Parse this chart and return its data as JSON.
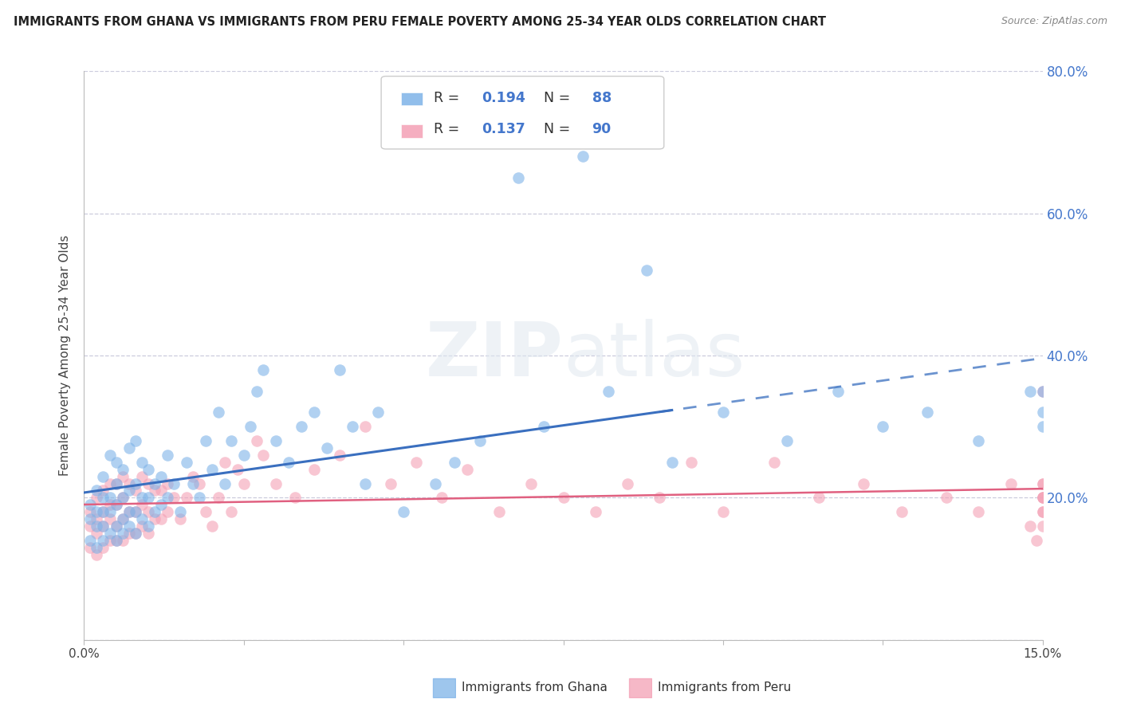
{
  "title": "IMMIGRANTS FROM GHANA VS IMMIGRANTS FROM PERU FEMALE POVERTY AMONG 25-34 YEAR OLDS CORRELATION CHART",
  "source": "Source: ZipAtlas.com",
  "ylabel": "Female Poverty Among 25-34 Year Olds",
  "xlim": [
    0.0,
    0.15
  ],
  "ylim": [
    0.0,
    0.8
  ],
  "ghana_R": 0.194,
  "ghana_N": 88,
  "peru_R": 0.137,
  "peru_N": 90,
  "ghana_color": "#7EB3E8",
  "peru_color": "#F4A0B5",
  "ghana_trend_color": "#3A6FBF",
  "peru_trend_color": "#E06080",
  "right_axis_color": "#4477CC",
  "background_color": "#FFFFFF",
  "grid_color": "#CCCCDD",
  "watermark_zip": "ZIP",
  "watermark_atlas": "atlas",
  "ghana_x": [
    0.001,
    0.001,
    0.001,
    0.002,
    0.002,
    0.002,
    0.002,
    0.003,
    0.003,
    0.003,
    0.003,
    0.003,
    0.004,
    0.004,
    0.004,
    0.004,
    0.005,
    0.005,
    0.005,
    0.005,
    0.005,
    0.006,
    0.006,
    0.006,
    0.006,
    0.007,
    0.007,
    0.007,
    0.007,
    0.008,
    0.008,
    0.008,
    0.008,
    0.009,
    0.009,
    0.009,
    0.01,
    0.01,
    0.01,
    0.011,
    0.011,
    0.012,
    0.012,
    0.013,
    0.013,
    0.014,
    0.015,
    0.016,
    0.017,
    0.018,
    0.019,
    0.02,
    0.021,
    0.022,
    0.023,
    0.025,
    0.026,
    0.027,
    0.028,
    0.03,
    0.032,
    0.034,
    0.036,
    0.038,
    0.04,
    0.042,
    0.044,
    0.046,
    0.05,
    0.055,
    0.058,
    0.062,
    0.068,
    0.072,
    0.078,
    0.082,
    0.088,
    0.092,
    0.1,
    0.11,
    0.118,
    0.125,
    0.132,
    0.14,
    0.148,
    0.15,
    0.15,
    0.15
  ],
  "ghana_y": [
    0.14,
    0.17,
    0.19,
    0.13,
    0.16,
    0.18,
    0.21,
    0.14,
    0.16,
    0.18,
    0.2,
    0.23,
    0.15,
    0.18,
    0.2,
    0.26,
    0.14,
    0.16,
    0.19,
    0.22,
    0.25,
    0.15,
    0.17,
    0.2,
    0.24,
    0.16,
    0.18,
    0.21,
    0.27,
    0.15,
    0.18,
    0.22,
    0.28,
    0.17,
    0.2,
    0.25,
    0.16,
    0.2,
    0.24,
    0.18,
    0.22,
    0.19,
    0.23,
    0.2,
    0.26,
    0.22,
    0.18,
    0.25,
    0.22,
    0.2,
    0.28,
    0.24,
    0.32,
    0.22,
    0.28,
    0.26,
    0.3,
    0.35,
    0.38,
    0.28,
    0.25,
    0.3,
    0.32,
    0.27,
    0.38,
    0.3,
    0.22,
    0.32,
    0.18,
    0.22,
    0.25,
    0.28,
    0.65,
    0.3,
    0.68,
    0.35,
    0.52,
    0.25,
    0.32,
    0.28,
    0.35,
    0.3,
    0.32,
    0.28,
    0.35,
    0.3,
    0.32,
    0.35
  ],
  "peru_x": [
    0.001,
    0.001,
    0.001,
    0.002,
    0.002,
    0.002,
    0.002,
    0.003,
    0.003,
    0.003,
    0.003,
    0.004,
    0.004,
    0.004,
    0.004,
    0.005,
    0.005,
    0.005,
    0.005,
    0.006,
    0.006,
    0.006,
    0.006,
    0.007,
    0.007,
    0.007,
    0.008,
    0.008,
    0.008,
    0.009,
    0.009,
    0.009,
    0.01,
    0.01,
    0.01,
    0.011,
    0.011,
    0.012,
    0.012,
    0.013,
    0.013,
    0.014,
    0.015,
    0.016,
    0.017,
    0.018,
    0.019,
    0.02,
    0.021,
    0.022,
    0.023,
    0.024,
    0.025,
    0.027,
    0.028,
    0.03,
    0.033,
    0.036,
    0.04,
    0.044,
    0.048,
    0.052,
    0.056,
    0.06,
    0.065,
    0.07,
    0.075,
    0.08,
    0.085,
    0.09,
    0.095,
    0.1,
    0.108,
    0.115,
    0.122,
    0.128,
    0.135,
    0.14,
    0.145,
    0.148,
    0.149,
    0.15,
    0.15,
    0.15,
    0.15,
    0.15,
    0.15,
    0.15,
    0.15,
    0.15
  ],
  "peru_y": [
    0.13,
    0.16,
    0.18,
    0.12,
    0.15,
    0.17,
    0.2,
    0.13,
    0.16,
    0.18,
    0.21,
    0.14,
    0.17,
    0.19,
    0.22,
    0.14,
    0.16,
    0.19,
    0.22,
    0.14,
    0.17,
    0.2,
    0.23,
    0.15,
    0.18,
    0.22,
    0.15,
    0.18,
    0.21,
    0.16,
    0.19,
    0.23,
    0.15,
    0.18,
    0.22,
    0.17,
    0.21,
    0.17,
    0.21,
    0.18,
    0.22,
    0.2,
    0.17,
    0.2,
    0.23,
    0.22,
    0.18,
    0.16,
    0.2,
    0.25,
    0.18,
    0.24,
    0.22,
    0.28,
    0.26,
    0.22,
    0.2,
    0.24,
    0.26,
    0.3,
    0.22,
    0.25,
    0.2,
    0.24,
    0.18,
    0.22,
    0.2,
    0.18,
    0.22,
    0.2,
    0.25,
    0.18,
    0.25,
    0.2,
    0.22,
    0.18,
    0.2,
    0.18,
    0.22,
    0.16,
    0.14,
    0.35,
    0.2,
    0.18,
    0.22,
    0.2,
    0.16,
    0.18,
    0.2,
    0.22
  ]
}
